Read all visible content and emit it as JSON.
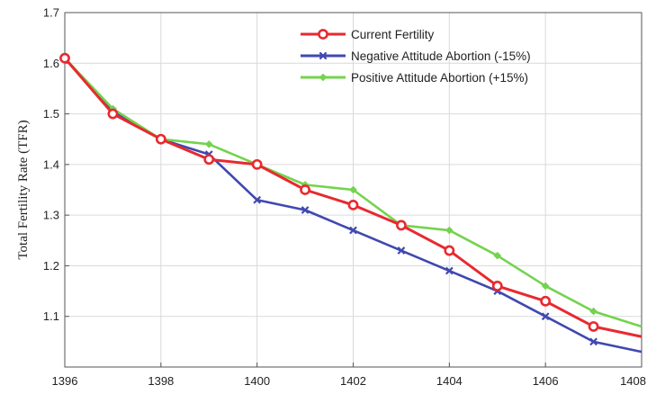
{
  "chart_data": {
    "type": "line",
    "title": "",
    "xlabel": "",
    "ylabel": "Total Fertility Rate (TFR)",
    "xlim": [
      1396,
      1408
    ],
    "ylim": [
      1.0,
      1.7
    ],
    "x_ticks": [
      1396,
      1398,
      1400,
      1402,
      1404,
      1406,
      1408
    ],
    "y_ticks": [
      1.1,
      1.2,
      1.3,
      1.4,
      1.5,
      1.6,
      1.7
    ],
    "grid": true,
    "legend_position": "top-right",
    "x": [
      1396,
      1397,
      1398,
      1399,
      1400,
      1401,
      1402,
      1403,
      1404,
      1405,
      1406,
      1407,
      1408
    ],
    "series": [
      {
        "name": "Current Fertility",
        "color": "#e8292f",
        "marker": "circle",
        "values": [
          1.61,
          1.5,
          1.45,
          1.41,
          1.4,
          1.35,
          1.32,
          1.28,
          1.23,
          1.16,
          1.13,
          1.08,
          1.06
        ]
      },
      {
        "name": "Negative Attitude Abortion (-15%)",
        "color": "#4048b0",
        "marker": "x",
        "values": [
          1.61,
          1.505,
          1.45,
          1.42,
          1.33,
          1.31,
          1.27,
          1.23,
          1.19,
          1.15,
          1.1,
          1.05,
          1.03
        ]
      },
      {
        "name": "Positive Attitude Abortion (+15%)",
        "color": "#74d34e",
        "marker": "diamond",
        "values": [
          1.61,
          1.51,
          1.45,
          1.44,
          1.4,
          1.36,
          1.35,
          1.28,
          1.27,
          1.22,
          1.16,
          1.11,
          1.08
        ]
      }
    ]
  }
}
